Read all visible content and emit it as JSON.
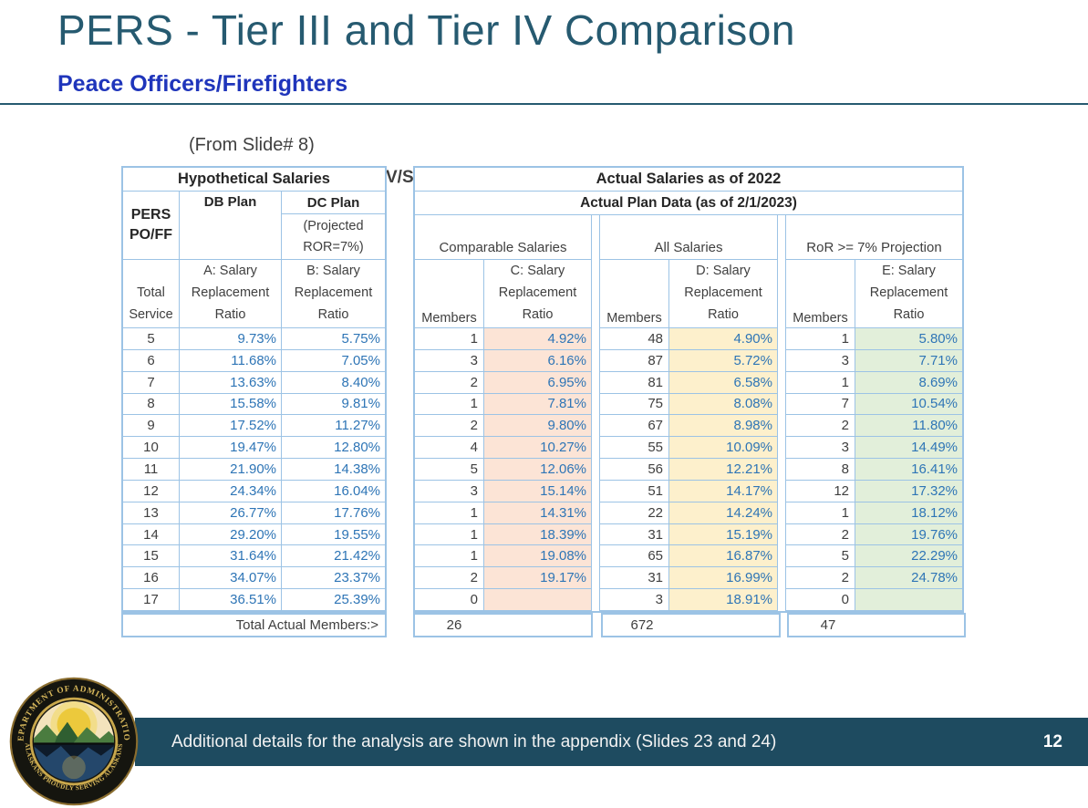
{
  "title": "PERS - Tier III and Tier IV Comparison",
  "subtitle": "Peace Officers/Firefighters",
  "from_slide_note": "(From Slide# 8)",
  "vs_label": "V/S",
  "left_table": {
    "title": "Hypothetical Salaries",
    "corner_label": "PERS PO/FF",
    "db_plan_label": "DB Plan",
    "dc_plan_label": "DC Plan",
    "dc_plan_sub": "(Projected ROR=7%)",
    "col_headers": [
      "Total Service",
      "A: Salary Replacement Ratio",
      "B: Salary Replacement Ratio"
    ]
  },
  "right_table": {
    "title": "Actual Salaries as of 2022",
    "subtitle": "Actual Plan Data (as of 2/1/2023)",
    "sections": [
      {
        "key": "comparable",
        "label": "Comparable Salaries",
        "members_header": "Members",
        "ratio_header": "C: Salary Replacement Ratio",
        "fill": "#FCE4D6",
        "total": "26"
      },
      {
        "key": "all",
        "label": "All Salaries",
        "members_header": "Members",
        "ratio_header": "D: Salary Replacement Ratio",
        "fill": "#FDF0CC",
        "total": "672"
      },
      {
        "key": "ror",
        "label": "RoR >= 7% Projection",
        "members_header": "Members",
        "ratio_header": "E: Salary Replacement Ratio",
        "fill": "#E2EFDA",
        "total": "47"
      }
    ]
  },
  "rows": [
    {
      "service": "5",
      "db": "9.73%",
      "dc": "5.75%",
      "comparable": {
        "members": "1",
        "ratio": "4.92%"
      },
      "all": {
        "members": "48",
        "ratio": "4.90%"
      },
      "ror": {
        "members": "1",
        "ratio": "5.80%"
      }
    },
    {
      "service": "6",
      "db": "11.68%",
      "dc": "7.05%",
      "comparable": {
        "members": "3",
        "ratio": "6.16%"
      },
      "all": {
        "members": "87",
        "ratio": "5.72%"
      },
      "ror": {
        "members": "3",
        "ratio": "7.71%"
      }
    },
    {
      "service": "7",
      "db": "13.63%",
      "dc": "8.40%",
      "comparable": {
        "members": "2",
        "ratio": "6.95%"
      },
      "all": {
        "members": "81",
        "ratio": "6.58%"
      },
      "ror": {
        "members": "1",
        "ratio": "8.69%"
      }
    },
    {
      "service": "8",
      "db": "15.58%",
      "dc": "9.81%",
      "comparable": {
        "members": "1",
        "ratio": "7.81%"
      },
      "all": {
        "members": "75",
        "ratio": "8.08%"
      },
      "ror": {
        "members": "7",
        "ratio": "10.54%"
      }
    },
    {
      "service": "9",
      "db": "17.52%",
      "dc": "11.27%",
      "comparable": {
        "members": "2",
        "ratio": "9.80%"
      },
      "all": {
        "members": "67",
        "ratio": "8.98%"
      },
      "ror": {
        "members": "2",
        "ratio": "11.80%"
      }
    },
    {
      "service": "10",
      "db": "19.47%",
      "dc": "12.80%",
      "comparable": {
        "members": "4",
        "ratio": "10.27%"
      },
      "all": {
        "members": "55",
        "ratio": "10.09%"
      },
      "ror": {
        "members": "3",
        "ratio": "14.49%"
      }
    },
    {
      "service": "11",
      "db": "21.90%",
      "dc": "14.38%",
      "comparable": {
        "members": "5",
        "ratio": "12.06%"
      },
      "all": {
        "members": "56",
        "ratio": "12.21%"
      },
      "ror": {
        "members": "8",
        "ratio": "16.41%"
      }
    },
    {
      "service": "12",
      "db": "24.34%",
      "dc": "16.04%",
      "comparable": {
        "members": "3",
        "ratio": "15.14%"
      },
      "all": {
        "members": "51",
        "ratio": "14.17%"
      },
      "ror": {
        "members": "12",
        "ratio": "17.32%"
      }
    },
    {
      "service": "13",
      "db": "26.77%",
      "dc": "17.76%",
      "comparable": {
        "members": "1",
        "ratio": "14.31%"
      },
      "all": {
        "members": "22",
        "ratio": "14.24%"
      },
      "ror": {
        "members": "1",
        "ratio": "18.12%"
      }
    },
    {
      "service": "14",
      "db": "29.20%",
      "dc": "19.55%",
      "comparable": {
        "members": "1",
        "ratio": "18.39%"
      },
      "all": {
        "members": "31",
        "ratio": "15.19%"
      },
      "ror": {
        "members": "2",
        "ratio": "19.76%"
      }
    },
    {
      "service": "15",
      "db": "31.64%",
      "dc": "21.42%",
      "comparable": {
        "members": "1",
        "ratio": "19.08%"
      },
      "all": {
        "members": "65",
        "ratio": "16.87%"
      },
      "ror": {
        "members": "5",
        "ratio": "22.29%"
      }
    },
    {
      "service": "16",
      "db": "34.07%",
      "dc": "23.37%",
      "comparable": {
        "members": "2",
        "ratio": "19.17%"
      },
      "all": {
        "members": "31",
        "ratio": "16.99%"
      },
      "ror": {
        "members": "2",
        "ratio": "24.78%"
      }
    },
    {
      "service": "17",
      "db": "36.51%",
      "dc": "25.39%",
      "comparable": {
        "members": "0",
        "ratio": ""
      },
      "all": {
        "members": "3",
        "ratio": "18.91%"
      },
      "ror": {
        "members": "0",
        "ratio": ""
      }
    }
  ],
  "totals_label": "Total Actual Members:>",
  "footer": {
    "text": "Additional details for the analysis are shown in the appendix (Slides 23 and 24)",
    "page": "12"
  },
  "logo": {
    "top_text": "DEPARTMENT OF ADMINISTRATION",
    "bottom_text": "★ ALASKANS PROUDLY SERVING ALASKANS ★"
  },
  "colors": {
    "title_teal": "#265A70",
    "subtitle_blue": "#1F35BB",
    "table_border": "#9CC3E5",
    "value_blue": "#2E75B6",
    "text_dark": "#3F3F3F",
    "footer_bar": "#1E4B60",
    "seal_gold": "#D9B95C"
  }
}
